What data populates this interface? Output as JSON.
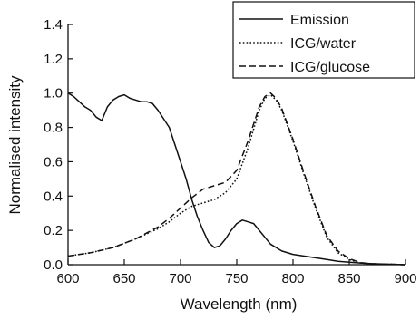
{
  "chart_data": {
    "type": "line",
    "xlabel": "Wavelength (nm)",
    "ylabel": "Normalised intensity",
    "xlim": [
      600,
      900
    ],
    "ylim": [
      0,
      1.4
    ],
    "xticks": [
      600,
      650,
      700,
      750,
      800,
      850,
      900
    ],
    "yticks": [
      0.0,
      0.2,
      0.4,
      0.6,
      0.8,
      1.0,
      1.2,
      1.4
    ],
    "xtick_labels": [
      "600",
      "650",
      "700",
      "750",
      "800",
      "850",
      "900"
    ],
    "ytick_labels": [
      "0.0",
      "0.2",
      "0.4",
      "0.6",
      "0.8",
      "1.0",
      "1.2",
      "1.4"
    ],
    "grid": false,
    "legend_position": "top-right",
    "series": [
      {
        "name": "Emission",
        "style": "solid",
        "x": [
          600,
          605,
          610,
          615,
          620,
          625,
          630,
          635,
          640,
          645,
          650,
          655,
          660,
          665,
          670,
          675,
          680,
          685,
          690,
          695,
          700,
          705,
          710,
          715,
          720,
          725,
          730,
          735,
          740,
          745,
          750,
          755,
          760,
          765,
          770,
          775,
          780,
          790,
          800,
          810,
          820,
          830,
          840,
          850,
          860,
          870,
          880,
          890,
          900
        ],
        "y": [
          1.0,
          0.98,
          0.95,
          0.92,
          0.9,
          0.86,
          0.84,
          0.92,
          0.96,
          0.98,
          0.99,
          0.97,
          0.96,
          0.95,
          0.95,
          0.94,
          0.9,
          0.85,
          0.8,
          0.7,
          0.6,
          0.5,
          0.38,
          0.28,
          0.2,
          0.13,
          0.1,
          0.11,
          0.15,
          0.2,
          0.24,
          0.26,
          0.25,
          0.24,
          0.2,
          0.16,
          0.12,
          0.08,
          0.06,
          0.05,
          0.04,
          0.03,
          0.02,
          0.015,
          0.01,
          0.006,
          0.004,
          0.002,
          0.0
        ]
      },
      {
        "name": "ICG/water",
        "style": "dotted",
        "x": [
          600,
          620,
          640,
          660,
          680,
          690,
          700,
          710,
          720,
          730,
          740,
          750,
          760,
          770,
          775,
          780,
          785,
          790,
          800,
          810,
          820,
          830,
          840,
          850,
          860,
          870,
          880,
          890,
          900
        ],
        "y": [
          0.05,
          0.07,
          0.1,
          0.15,
          0.21,
          0.25,
          0.3,
          0.34,
          0.36,
          0.38,
          0.42,
          0.5,
          0.68,
          0.9,
          0.97,
          0.99,
          0.96,
          0.9,
          0.72,
          0.52,
          0.33,
          0.16,
          0.07,
          0.03,
          0.01,
          0.005,
          0.003,
          0.002,
          0.0
        ]
      },
      {
        "name": "ICG/glucose",
        "style": "dashed",
        "x": [
          600,
          620,
          640,
          660,
          680,
          690,
          700,
          710,
          720,
          730,
          740,
          750,
          760,
          770,
          775,
          780,
          785,
          790,
          800,
          810,
          820,
          830,
          840,
          850,
          860,
          870,
          880,
          890,
          900
        ],
        "y": [
          0.05,
          0.07,
          0.1,
          0.15,
          0.22,
          0.27,
          0.33,
          0.39,
          0.44,
          0.46,
          0.48,
          0.55,
          0.72,
          0.92,
          0.98,
          1.0,
          0.97,
          0.91,
          0.73,
          0.53,
          0.34,
          0.17,
          0.08,
          0.035,
          0.012,
          0.006,
          0.003,
          0.002,
          0.0
        ]
      }
    ]
  }
}
